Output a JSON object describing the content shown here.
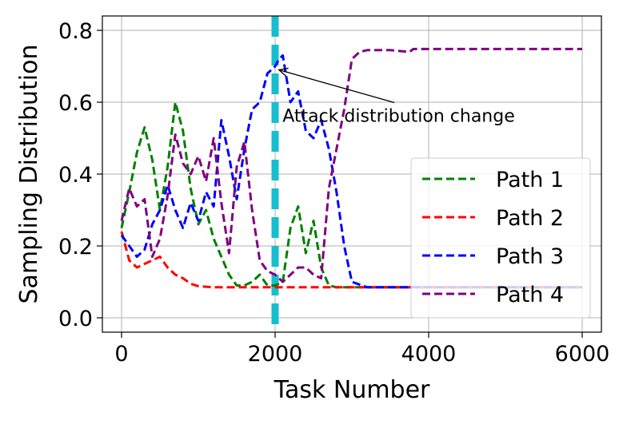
{
  "chart_data": {
    "type": "line",
    "xlabel": "Task Number",
    "ylabel": "Sampling Distribution",
    "xlim": [
      -250,
      6250
    ],
    "ylim": [
      -0.04,
      0.84
    ],
    "xticks": [
      0,
      2000,
      4000,
      6000
    ],
    "xtick_labels": [
      "0",
      "2000",
      "4000",
      "6000"
    ],
    "yticks": [
      0.0,
      0.2,
      0.4,
      0.6,
      0.8
    ],
    "ytick_labels": [
      "0.0",
      "0.2",
      "0.4",
      "0.6",
      "0.8"
    ],
    "grid": true,
    "legend_position": "lower-right",
    "vertical_marker": {
      "x": 2000,
      "color": "#17becf",
      "style": "dashed"
    },
    "annotation": {
      "text": "Attack distribution change",
      "target": {
        "x": 2050,
        "y": 0.69
      },
      "text_anchor": {
        "x": 2200,
        "y": 0.55
      }
    },
    "series": [
      {
        "name": "Path 1",
        "color": "#008000",
        "style": "dashed",
        "x": [
          0,
          100,
          200,
          300,
          400,
          500,
          600,
          700,
          800,
          900,
          1000,
          1100,
          1200,
          1300,
          1400,
          1500,
          1600,
          1700,
          1800,
          1900,
          2000,
          2100,
          2200,
          2300,
          2400,
          2500,
          2600,
          2700,
          2800,
          3000,
          3500,
          4000,
          5000,
          6000
        ],
        "y": [
          0.25,
          0.35,
          0.46,
          0.53,
          0.44,
          0.3,
          0.42,
          0.6,
          0.52,
          0.36,
          0.26,
          0.3,
          0.22,
          0.17,
          0.12,
          0.09,
          0.09,
          0.1,
          0.12,
          0.09,
          0.09,
          0.1,
          0.25,
          0.31,
          0.18,
          0.27,
          0.14,
          0.09,
          0.085,
          0.085,
          0.085,
          0.085,
          0.085,
          0.085
        ]
      },
      {
        "name": "Path 2",
        "color": "#ff0000",
        "style": "dashed",
        "x": [
          0,
          100,
          200,
          300,
          400,
          500,
          600,
          700,
          800,
          900,
          1000,
          1200,
          1500,
          2000,
          3000,
          4000,
          5000,
          6000
        ],
        "y": [
          0.24,
          0.16,
          0.14,
          0.15,
          0.16,
          0.17,
          0.14,
          0.12,
          0.11,
          0.095,
          0.088,
          0.085,
          0.085,
          0.085,
          0.085,
          0.085,
          0.085,
          0.085
        ]
      },
      {
        "name": "Path 3",
        "color": "#0000ff",
        "style": "dashed",
        "x": [
          0,
          100,
          200,
          300,
          400,
          500,
          600,
          700,
          800,
          900,
          1000,
          1100,
          1200,
          1300,
          1400,
          1500,
          1600,
          1700,
          1800,
          1900,
          2000,
          2050,
          2100,
          2200,
          2300,
          2400,
          2500,
          2600,
          2700,
          2800,
          2900,
          3000,
          3200,
          3500,
          4000,
          5000,
          6000
        ],
        "y": [
          0.23,
          0.2,
          0.17,
          0.19,
          0.26,
          0.3,
          0.37,
          0.3,
          0.25,
          0.32,
          0.27,
          0.35,
          0.31,
          0.55,
          0.45,
          0.33,
          0.47,
          0.58,
          0.6,
          0.68,
          0.7,
          0.72,
          0.73,
          0.6,
          0.63,
          0.52,
          0.5,
          0.55,
          0.47,
          0.35,
          0.2,
          0.1,
          0.085,
          0.085,
          0.085,
          0.085,
          0.085
        ]
      },
      {
        "name": "Path 4",
        "color": "#800080",
        "style": "dashed",
        "x": [
          0,
          100,
          200,
          300,
          400,
          500,
          600,
          700,
          800,
          900,
          1000,
          1100,
          1200,
          1300,
          1400,
          1500,
          1600,
          1700,
          1800,
          1900,
          2000,
          2100,
          2200,
          2300,
          2400,
          2500,
          2600,
          2700,
          2800,
          2900,
          2950,
          3000,
          3100,
          3200,
          3500,
          3750,
          3800,
          4000,
          5000,
          6000
        ],
        "y": [
          0.27,
          0.36,
          0.31,
          0.33,
          0.17,
          0.22,
          0.34,
          0.51,
          0.43,
          0.4,
          0.45,
          0.38,
          0.5,
          0.32,
          0.18,
          0.42,
          0.49,
          0.3,
          0.16,
          0.13,
          0.12,
          0.1,
          0.12,
          0.14,
          0.14,
          0.12,
          0.11,
          0.36,
          0.47,
          0.58,
          0.65,
          0.72,
          0.74,
          0.745,
          0.745,
          0.74,
          0.748,
          0.748,
          0.748,
          0.748
        ]
      }
    ]
  }
}
